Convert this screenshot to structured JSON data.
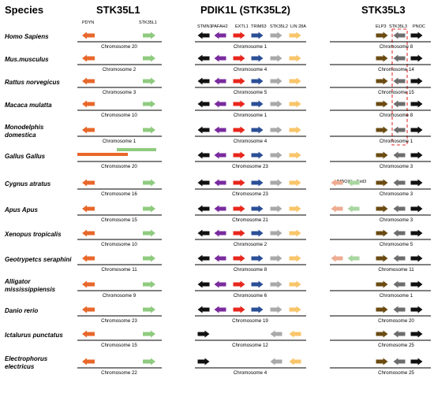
{
  "headers": {
    "species": "Species",
    "stk35l1": "STK35L1",
    "pdik1l": "PDIK1L (STK35L2)",
    "stk35l3": "STK35L3"
  },
  "colors": {
    "orange": "#e8672a",
    "green": "#8fcb7f",
    "black": "#111111",
    "purple": "#7a2a9e",
    "red": "#e8261c",
    "blue": "#2b4f96",
    "gray": "#a9a9a9",
    "yellow": "#f9c56a",
    "brown": "#6b4b12",
    "darkgray": "#6d6d6d",
    "salmon": "#eeac92",
    "lightgreen": "#a8d6a0",
    "highlight": "#e53030"
  },
  "gene_labels": {
    "stk35l1": [
      "PDYN",
      "STK35L1"
    ],
    "pdik1l": [
      "STMN1",
      "PAFAH2",
      "EXTL1",
      "TRIM63",
      "STK35L2",
      "LIN 28A"
    ],
    "stk35l3": [
      "ELP3",
      "STK35L3",
      "PNOC"
    ],
    "cygnus_extra": [
      "HMBOX1",
      "Extl3"
    ]
  },
  "rows": [
    {
      "species": [
        "Homo Sapiens"
      ],
      "l1": {
        "chr": "Chromosome 20",
        "arrows": [
          [
            "orange",
            "L"
          ],
          [
            "green",
            "R"
          ]
        ]
      },
      "l2": {
        "chr": "Chromosome 1",
        "arrows": [
          [
            "black",
            "L"
          ],
          [
            "purple",
            "L"
          ],
          [
            "red",
            "R"
          ],
          [
            "blue",
            "R"
          ],
          [
            "gray",
            "R"
          ],
          [
            "yellow",
            "R"
          ]
        ]
      },
      "l3": {
        "chr": "Chromosome 8",
        "arrows": [
          [
            "brown",
            "R"
          ],
          [
            "darkgray",
            "L"
          ],
          [
            "black",
            "R"
          ]
        ]
      }
    },
    {
      "species": [
        "Mus.musculus"
      ],
      "l1": {
        "chr": "Chromosome 2",
        "arrows": [
          [
            "orange",
            "L"
          ],
          [
            "green",
            "R"
          ]
        ]
      },
      "l2": {
        "chr": "Chromosome 4",
        "arrows": [
          [
            "black",
            "L"
          ],
          [
            "purple",
            "L"
          ],
          [
            "red",
            "R"
          ],
          [
            "blue",
            "R"
          ],
          [
            "gray",
            "R"
          ],
          [
            "yellow",
            "R"
          ]
        ]
      },
      "l3": {
        "chr": "Chromosome 14",
        "arrows": [
          [
            "brown",
            "R"
          ],
          [
            "darkgray",
            "L"
          ],
          [
            "black",
            "R"
          ]
        ]
      }
    },
    {
      "species": [
        "Rattus norvegicus"
      ],
      "l1": {
        "chr": "Chromosome 3",
        "arrows": [
          [
            "orange",
            "L"
          ],
          [
            "green",
            "R"
          ]
        ]
      },
      "l2": {
        "chr": "Chromosome 5",
        "arrows": [
          [
            "black",
            "L"
          ],
          [
            "purple",
            "L"
          ],
          [
            "red",
            "R"
          ],
          [
            "blue",
            "R"
          ],
          [
            "gray",
            "R"
          ],
          [
            "yellow",
            "R"
          ]
        ]
      },
      "l3": {
        "chr": "Chromosome 15",
        "arrows": [
          [
            "brown",
            "R"
          ],
          [
            "darkgray",
            "L"
          ],
          [
            "black",
            "R"
          ]
        ]
      }
    },
    {
      "species": [
        "Macaca mulatta"
      ],
      "l1": {
        "chr": "Chromosome 10",
        "arrows": [
          [
            "orange",
            "L"
          ],
          [
            "green",
            "R"
          ]
        ]
      },
      "l2": {
        "chr": "Chromosome 1",
        "arrows": [
          [
            "black",
            "L"
          ],
          [
            "purple",
            "L"
          ],
          [
            "red",
            "R"
          ],
          [
            "blue",
            "R"
          ],
          [
            "gray",
            "R"
          ],
          [
            "yellow",
            "R"
          ]
        ]
      },
      "l3": {
        "chr": "Chromosome 8",
        "arrows": [
          [
            "brown",
            "R"
          ],
          [
            "darkgray",
            "L"
          ],
          [
            "black",
            "R"
          ]
        ]
      }
    },
    {
      "species": [
        "Monodelphis",
        "domestica"
      ],
      "l1": {
        "chr": "Chromosome 1",
        "arrows": [
          [
            "orange",
            "L"
          ],
          [
            "green",
            "R"
          ]
        ]
      },
      "l2": {
        "chr": "Chromosome 4",
        "arrows": [
          [
            "black",
            "L"
          ],
          [
            "purple",
            "L"
          ],
          [
            "red",
            "R"
          ],
          [
            "blue",
            "R"
          ],
          [
            "gray",
            "R"
          ],
          [
            "yellow",
            "R"
          ]
        ]
      },
      "l3": {
        "chr": "Chromosome 1",
        "arrows": [
          [
            "brown",
            "R"
          ],
          [
            "darkgray",
            "L"
          ],
          [
            "black",
            "R"
          ]
        ]
      }
    },
    {
      "species": [
        "Gallus Gallus"
      ],
      "l1": {
        "chr": "Chromosome 20",
        "arrows": [
          [
            "orange",
            "L"
          ],
          [
            "green",
            "R"
          ]
        ],
        "overlap": true
      },
      "l2": {
        "chr": "Chromosome 23",
        "arrows": [
          [
            "black",
            "L"
          ],
          [
            "purple",
            "L"
          ],
          [
            "red",
            "R"
          ],
          [
            "blue",
            "R"
          ],
          [
            "gray",
            "R"
          ],
          [
            "yellow",
            "R"
          ]
        ]
      },
      "l3": {
        "chr": "Chromosome 3",
        "arrows": [
          [
            "brown",
            "R"
          ],
          [
            "darkgray",
            "L"
          ],
          [
            "black",
            "R"
          ]
        ]
      }
    },
    {
      "species": [
        "Cygnus atratus"
      ],
      "l1": {
        "chr": "Chromosome 16",
        "arrows": [
          [
            "orange",
            "L"
          ],
          [
            "green",
            "R"
          ]
        ]
      },
      "l2": {
        "chr": "Chromosome 23",
        "arrows": [
          [
            "black",
            "L"
          ],
          [
            "purple",
            "L"
          ],
          [
            "red",
            "R"
          ],
          [
            "blue",
            "R"
          ],
          [
            "gray",
            "R"
          ],
          [
            "yellow",
            "R"
          ]
        ]
      },
      "l3": {
        "chr": "Chromosome 3",
        "arrows": [
          [
            "salmon",
            "L"
          ],
          [
            "lightgreen",
            "L"
          ],
          [
            "brown",
            "R"
          ],
          [
            "darkgray",
            "L"
          ],
          [
            "black",
            "R"
          ]
        ]
      }
    },
    {
      "species": [
        "Apus Apus"
      ],
      "l1": {
        "chr": "Chromosome 15",
        "arrows": [
          [
            "orange",
            "L"
          ],
          [
            "green",
            "R"
          ]
        ]
      },
      "l2": {
        "chr": "Chromosome 21",
        "arrows": [
          [
            "black",
            "L"
          ],
          [
            "purple",
            "L"
          ],
          [
            "red",
            "R"
          ],
          [
            "blue",
            "R"
          ],
          [
            "gray",
            "R"
          ],
          [
            "yellow",
            "R"
          ]
        ]
      },
      "l3": {
        "chr": "Chromosome 3",
        "arrows": [
          [
            "salmon",
            "L"
          ],
          [
            "lightgreen",
            "L"
          ],
          [
            "brown",
            "R"
          ],
          [
            "darkgray",
            "L"
          ],
          [
            "black",
            "R"
          ]
        ]
      }
    },
    {
      "species": [
        "Xenopus tropicalis"
      ],
      "l1": {
        "chr": "Chromosome 10",
        "arrows": [
          [
            "orange",
            "L"
          ],
          [
            "green",
            "R"
          ]
        ]
      },
      "l2": {
        "chr": "Chromosome 2",
        "arrows": [
          [
            "black",
            "L"
          ],
          [
            "purple",
            "L"
          ],
          [
            "red",
            "R"
          ],
          [
            "blue",
            "R"
          ],
          [
            "gray",
            "R"
          ],
          [
            "yellow",
            "R"
          ]
        ]
      },
      "l3": {
        "chr": "Chromosome 5",
        "arrows": [
          [
            "brown",
            "R"
          ],
          [
            "darkgray",
            "L"
          ],
          [
            "black",
            "R"
          ]
        ]
      }
    },
    {
      "species": [
        "Geotrypetcs seraphini"
      ],
      "l1": {
        "chr": "Chromosome 11",
        "arrows": [
          [
            "orange",
            "L"
          ],
          [
            "green",
            "R"
          ]
        ]
      },
      "l2": {
        "chr": "Chromosome 8",
        "arrows": [
          [
            "black",
            "L"
          ],
          [
            "purple",
            "L"
          ],
          [
            "red",
            "R"
          ],
          [
            "blue",
            "R"
          ],
          [
            "gray",
            "R"
          ],
          [
            "yellow",
            "R"
          ]
        ]
      },
      "l3": {
        "chr": "Chromosome 11",
        "arrows": [
          [
            "salmon",
            "L"
          ],
          [
            "lightgreen",
            "L"
          ],
          [
            "brown",
            "R"
          ],
          [
            "darkgray",
            "L"
          ],
          [
            "black",
            "R"
          ]
        ]
      }
    },
    {
      "species": [
        "Alligator",
        "mississippiensis"
      ],
      "l1": {
        "chr": "Chromosome 9",
        "arrows": [
          [
            "orange",
            "L"
          ],
          [
            "green",
            "R"
          ]
        ]
      },
      "l2": {
        "chr": "Chromosome 6",
        "arrows": [
          [
            "black",
            "L"
          ],
          [
            "purple",
            "L"
          ],
          [
            "red",
            "R"
          ],
          [
            "blue",
            "R"
          ],
          [
            "gray",
            "R"
          ],
          [
            "yellow",
            "R"
          ]
        ]
      },
      "l3": {
        "chr": "Chromosome 1",
        "arrows": [
          [
            "brown",
            "R"
          ],
          [
            "darkgray",
            "L"
          ],
          [
            "black",
            "R"
          ]
        ]
      }
    },
    {
      "species": [
        "Danio rerio"
      ],
      "l1": {
        "chr": "Chromosome 23",
        "arrows": [
          [
            "orange",
            "L"
          ],
          [
            "green",
            "R"
          ]
        ]
      },
      "l2": {
        "chr": "Chromosome 19",
        "arrows": [
          [
            "black",
            "L"
          ],
          [
            "purple",
            "L"
          ],
          [
            "red",
            "R"
          ],
          [
            "blue",
            "R"
          ],
          [
            "gray",
            "R"
          ],
          [
            "yellow",
            "R"
          ]
        ]
      },
      "l3": {
        "chr": "Chromosome 20",
        "arrows": [
          [
            "brown",
            "R"
          ],
          [
            "darkgray",
            "L"
          ],
          [
            "black",
            "R"
          ]
        ]
      }
    },
    {
      "species": [
        "Ictalurus punctatus"
      ],
      "l1": {
        "chr": "Chromosome 15",
        "arrows": [
          [
            "orange",
            "L"
          ],
          [
            "green",
            "R"
          ]
        ]
      },
      "l2": {
        "chr": "Chromosome 12",
        "arrows": [
          [
            "black",
            "R"
          ],
          null,
          null,
          null,
          [
            "gray",
            "L"
          ],
          [
            "yellow",
            "L"
          ]
        ]
      },
      "l3": {
        "chr": "Chromosome 25",
        "arrows": [
          [
            "brown",
            "R"
          ],
          [
            "darkgray",
            "L"
          ],
          [
            "black",
            "R"
          ]
        ]
      }
    },
    {
      "species": [
        "Electrophorus",
        "electricus"
      ],
      "l1": {
        "chr": "Chromosome 22",
        "arrows": [
          [
            "orange",
            "L"
          ],
          [
            "green",
            "R"
          ]
        ]
      },
      "l2": {
        "chr": "Chromosome 4",
        "arrows": [
          [
            "black",
            "R"
          ],
          null,
          null,
          null,
          [
            "gray",
            "L"
          ],
          [
            "yellow",
            "L"
          ]
        ]
      },
      "l3": {
        "chr": "Chromosome 25",
        "arrows": [
          [
            "brown",
            "R"
          ],
          [
            "darkgray",
            "L"
          ],
          [
            "black",
            "R"
          ]
        ]
      }
    }
  ]
}
